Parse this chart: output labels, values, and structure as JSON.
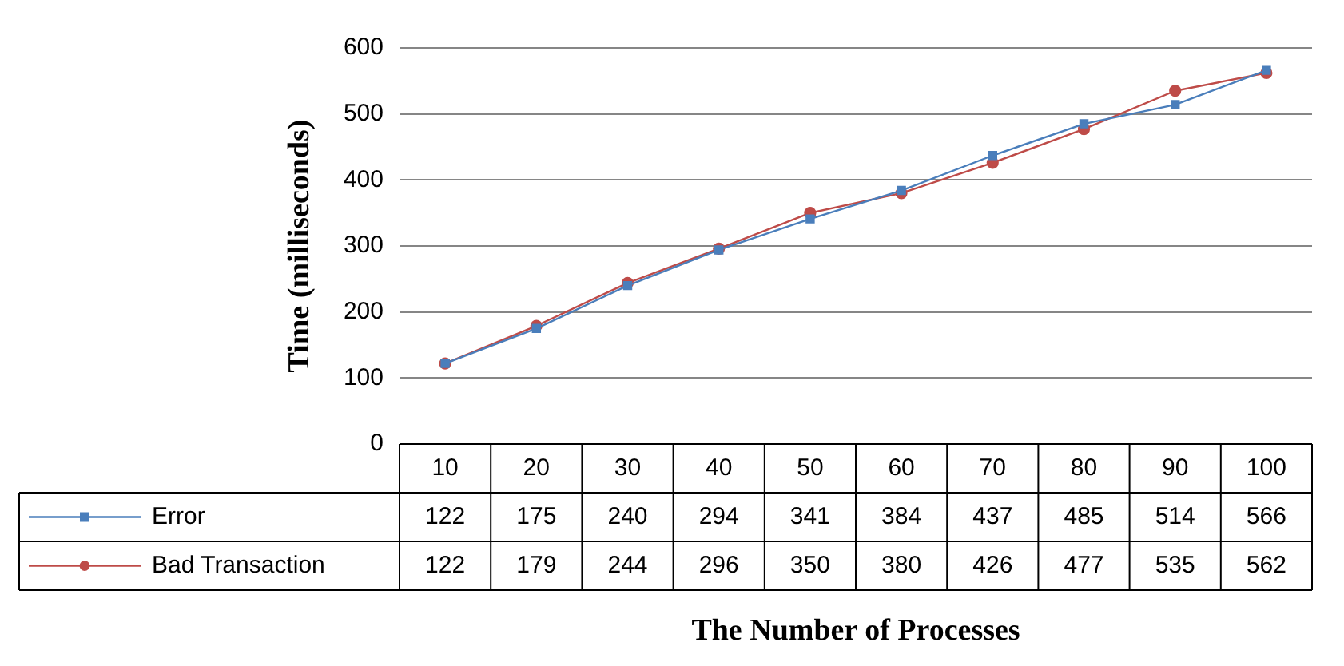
{
  "chart_data": {
    "type": "line",
    "ylabel": "Time (milliseconds)",
    "xlabel": "The Number of Processes",
    "categories": [
      "10",
      "20",
      "30",
      "40",
      "50",
      "60",
      "70",
      "80",
      "90",
      "100"
    ],
    "series": [
      {
        "name": "Error",
        "color": "#4a7ebb",
        "marker": "square",
        "values": [
          122,
          175,
          240,
          294,
          341,
          384,
          437,
          485,
          514,
          566
        ]
      },
      {
        "name": "Bad Transaction",
        "color": "#be4b48",
        "marker": "circle",
        "values": [
          122,
          179,
          244,
          296,
          350,
          380,
          426,
          477,
          535,
          562
        ]
      }
    ],
    "ylim": [
      0,
      600
    ],
    "yticks": [
      0,
      100,
      200,
      300,
      400,
      500,
      600
    ],
    "grid": "y",
    "legend": "bottom",
    "data_labels": true
  }
}
